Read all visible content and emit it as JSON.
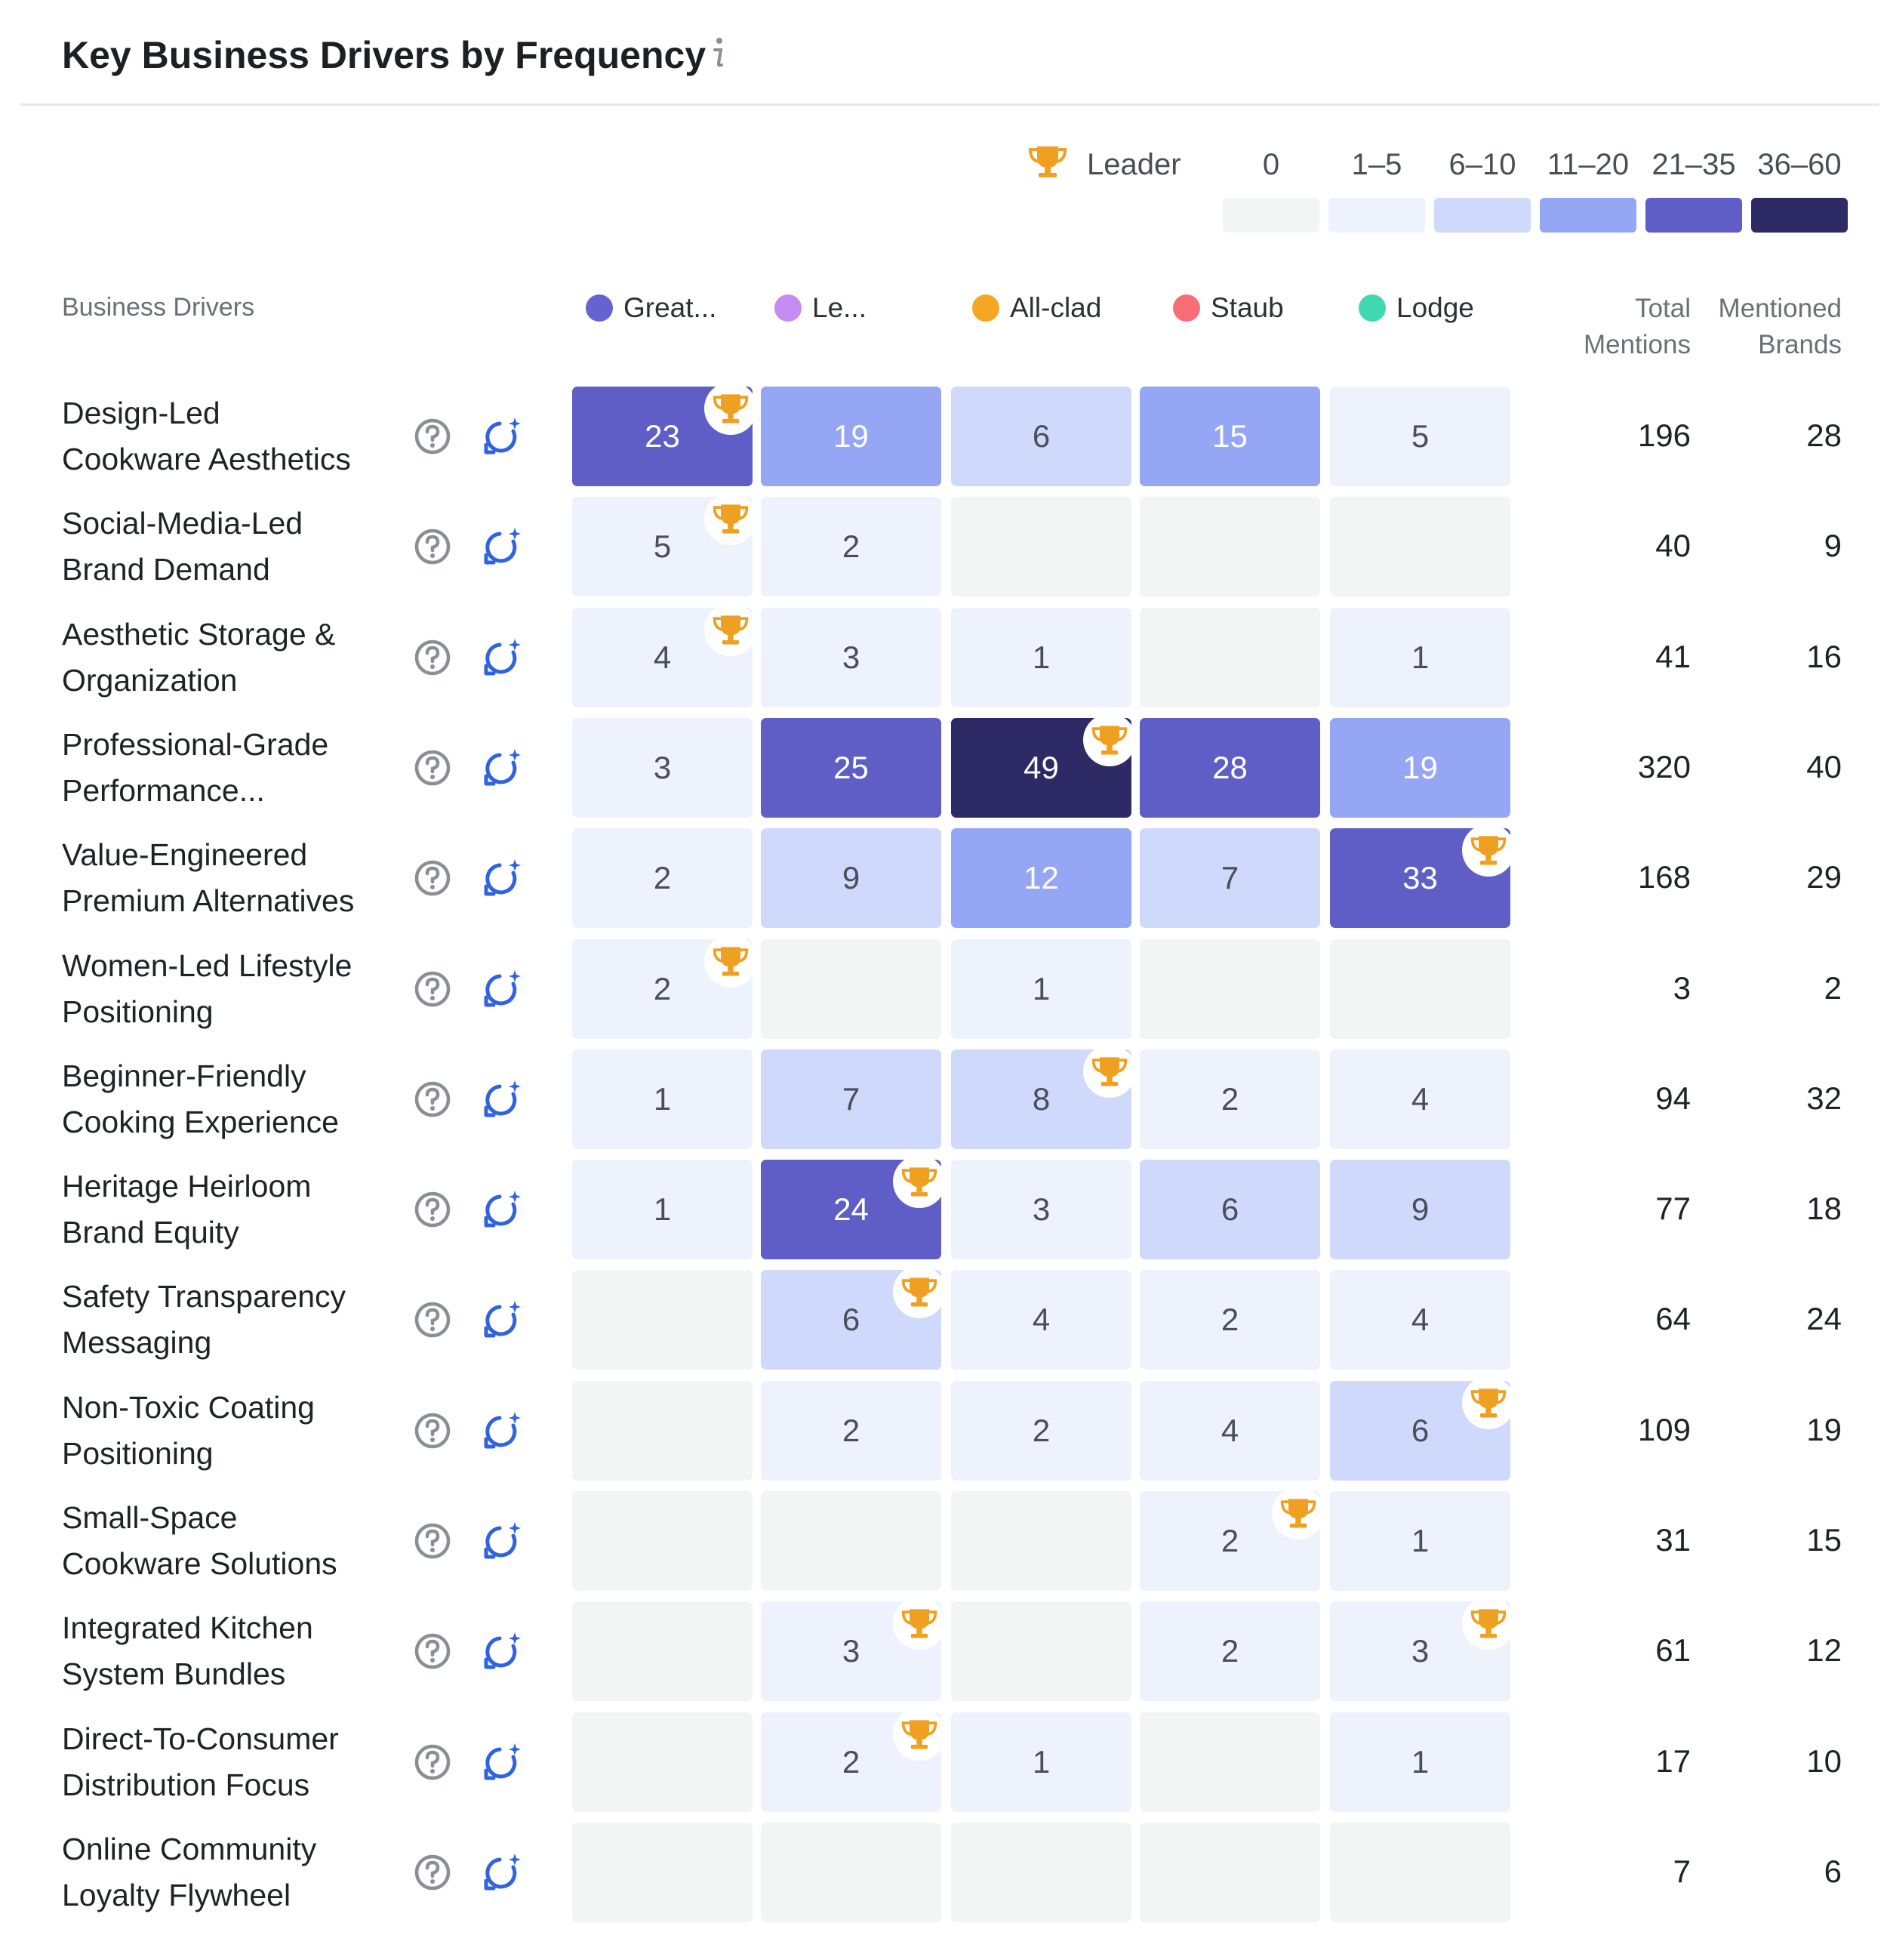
{
  "header": {
    "title": "Key Business Drivers by Frequency",
    "info_icon": "info-icon"
  },
  "legend": {
    "leader_label": "Leader",
    "bins": [
      {
        "label": "0",
        "color": "#f3f4f4"
      },
      {
        "label": "1–5",
        "color": "#eef2fd"
      },
      {
        "label": "6–10",
        "color": "#ced9fc"
      },
      {
        "label": "11–20",
        "color": "#95a6f4"
      },
      {
        "label": "21–35",
        "color": "#5f5ec6"
      },
      {
        "label": "36–60",
        "color": "#2d2a66"
      }
    ]
  },
  "columns": {
    "drivers_label": "Business Drivers",
    "brands": [
      {
        "name": "Great...",
        "color": "#6563d1"
      },
      {
        "name": "Le...",
        "color": "#c58cf2"
      },
      {
        "name": "All-clad",
        "color": "#f5a623"
      },
      {
        "name": "Staub",
        "color": "#f76e77"
      },
      {
        "name": "Lodge",
        "color": "#3ed8b1"
      }
    ],
    "total_mentions": [
      "Total",
      "Mentions"
    ],
    "mentioned_brands": [
      "Mentioned",
      "Brands"
    ]
  },
  "rows": [
    {
      "label": [
        "Design-Led",
        "Cookware Aesthetics"
      ],
      "values": [
        "23",
        "19",
        "6",
        "15",
        "5"
      ],
      "leader": 0,
      "total": "196",
      "brands": "28"
    },
    {
      "label": [
        "Social-Media-Led",
        "Brand Demand"
      ],
      "values": [
        "5",
        "2",
        "",
        "",
        ""
      ],
      "leader": 0,
      "total": "40",
      "brands": "9"
    },
    {
      "label": [
        "Aesthetic Storage &",
        "Organization"
      ],
      "values": [
        "4",
        "3",
        "1",
        "",
        "1"
      ],
      "leader": 0,
      "total": "41",
      "brands": "16"
    },
    {
      "label": [
        "Professional-Grade",
        "Performance..."
      ],
      "values": [
        "3",
        "25",
        "49",
        "28",
        "19"
      ],
      "leader": 2,
      "total": "320",
      "brands": "40"
    },
    {
      "label": [
        "Value-Engineered",
        "Premium Alternatives"
      ],
      "values": [
        "2",
        "9",
        "12",
        "7",
        "33"
      ],
      "leader": 4,
      "total": "168",
      "brands": "29"
    },
    {
      "label": [
        "Women-Led Lifestyle",
        "Positioning"
      ],
      "values": [
        "2",
        "",
        "1",
        "",
        ""
      ],
      "leader": 0,
      "total": "3",
      "brands": "2"
    },
    {
      "label": [
        "Beginner-Friendly",
        "Cooking Experience"
      ],
      "values": [
        "1",
        "7",
        "8",
        "2",
        "4"
      ],
      "leader": 2,
      "total": "94",
      "brands": "32"
    },
    {
      "label": [
        "Heritage Heirloom",
        "Brand Equity"
      ],
      "values": [
        "1",
        "24",
        "3",
        "6",
        "9"
      ],
      "leader": 1,
      "total": "77",
      "brands": "18"
    },
    {
      "label": [
        "Safety Transparency",
        "Messaging"
      ],
      "values": [
        "",
        "6",
        "4",
        "2",
        "4"
      ],
      "leader": 1,
      "total": "64",
      "brands": "24"
    },
    {
      "label": [
        "Non-Toxic Coating",
        "Positioning"
      ],
      "values": [
        "",
        "2",
        "2",
        "4",
        "6"
      ],
      "leader": 4,
      "total": "109",
      "brands": "19"
    },
    {
      "label": [
        "Small-Space",
        "Cookware Solutions"
      ],
      "values": [
        "",
        "",
        "",
        "2",
        "1"
      ],
      "leader": 3,
      "total": "31",
      "brands": "15"
    },
    {
      "label": [
        "Integrated Kitchen",
        "System Bundles"
      ],
      "values": [
        "",
        "3",
        "",
        "2",
        "3"
      ],
      "leader": [
        1,
        4
      ],
      "total": "61",
      "brands": "12"
    },
    {
      "label": [
        "Direct-To-Consumer",
        "Distribution Focus"
      ],
      "values": [
        "",
        "2",
        "1",
        "",
        "1"
      ],
      "leader": 1,
      "total": "17",
      "brands": "10"
    },
    {
      "label": [
        "Online Community",
        "Loyalty Flywheel"
      ],
      "values": [
        "",
        "",
        "",
        "",
        ""
      ],
      "leader": -1,
      "total": "7",
      "brands": "6"
    }
  ]
}
